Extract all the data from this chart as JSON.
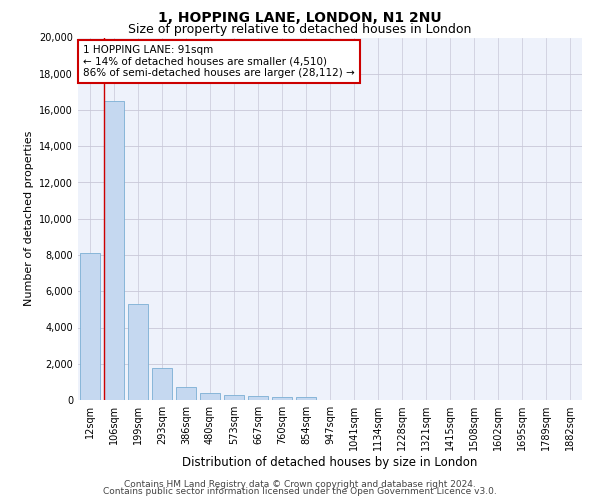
{
  "title": "1, HOPPING LANE, LONDON, N1 2NU",
  "subtitle": "Size of property relative to detached houses in London",
  "xlabel": "Distribution of detached houses by size in London",
  "ylabel": "Number of detached properties",
  "categories": [
    "12sqm",
    "106sqm",
    "199sqm",
    "293sqm",
    "386sqm",
    "480sqm",
    "573sqm",
    "667sqm",
    "760sqm",
    "854sqm",
    "947sqm",
    "1041sqm",
    "1134sqm",
    "1228sqm",
    "1321sqm",
    "1415sqm",
    "1508sqm",
    "1602sqm",
    "1695sqm",
    "1789sqm",
    "1882sqm"
  ],
  "values": [
    8100,
    16500,
    5300,
    1750,
    700,
    380,
    280,
    200,
    170,
    150,
    0,
    0,
    0,
    0,
    0,
    0,
    0,
    0,
    0,
    0,
    0
  ],
  "bar_color": "#c5d8f0",
  "bar_edge_color": "#7bafd4",
  "vline_x": 0.57,
  "vline_color": "#cc0000",
  "annotation_text": "1 HOPPING LANE: 91sqm\n← 14% of detached houses are smaller (4,510)\n86% of semi-detached houses are larger (28,112) →",
  "annotation_box_color": "#ffffff",
  "annotation_box_edge": "#cc0000",
  "ylim": [
    0,
    20000
  ],
  "yticks": [
    0,
    2000,
    4000,
    6000,
    8000,
    10000,
    12000,
    14000,
    16000,
    18000,
    20000
  ],
  "grid_color": "#c8c8d8",
  "background_color": "#eef2fb",
  "footer_line1": "Contains HM Land Registry data © Crown copyright and database right 2024.",
  "footer_line2": "Contains public sector information licensed under the Open Government Licence v3.0.",
  "title_fontsize": 10,
  "subtitle_fontsize": 9,
  "axis_label_fontsize": 8,
  "tick_fontsize": 7,
  "annotation_fontsize": 7.5,
  "footer_fontsize": 6.5
}
